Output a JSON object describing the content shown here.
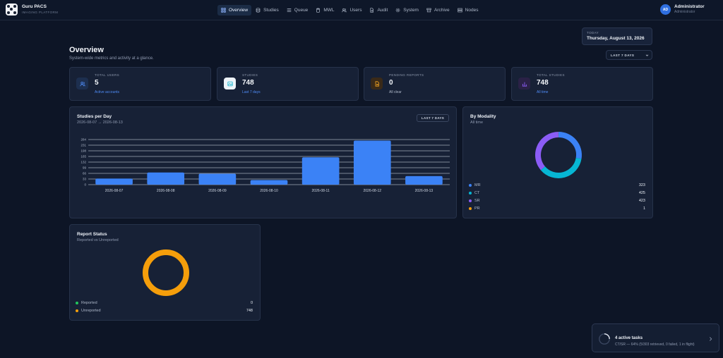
{
  "app": {
    "name": "Guru PACS",
    "subtitle": "IMAGING PLATFORM"
  },
  "nav": [
    {
      "label": "Overview",
      "icon": "grid-icon",
      "active": true
    },
    {
      "label": "Studies",
      "icon": "database-icon"
    },
    {
      "label": "Queue",
      "icon": "list-icon"
    },
    {
      "label": "MWL",
      "icon": "clipboard-icon"
    },
    {
      "label": "Users",
      "icon": "users-icon"
    },
    {
      "label": "Audit",
      "icon": "file-icon"
    },
    {
      "label": "System",
      "icon": "gear-icon"
    },
    {
      "label": "Archive",
      "icon": "archive-icon"
    },
    {
      "label": "Nodes",
      "icon": "server-icon"
    }
  ],
  "user": {
    "initials": "AD",
    "name": "Administrator",
    "role": "Administrator"
  },
  "date": {
    "label": "TODAY",
    "value": "Thursday, August 13, 2026"
  },
  "page": {
    "title": "Overview",
    "subtitle": "System-wide metrics and activity at a glance."
  },
  "range_select": {
    "value": "LAST 7 DAYS"
  },
  "stats": [
    {
      "label": "TOTAL USERS",
      "value": "5",
      "sub": "Active accounts",
      "icon": "users-icon",
      "color": "#4f8cf7",
      "sub_color": "#4f8cf7",
      "bg": "#1d2f4f"
    },
    {
      "label": "STUDIES",
      "value": "748",
      "sub": "Last 7 days",
      "icon": "image-icon",
      "color": "#22b8cf",
      "sub_color": "#4f8cf7",
      "bg": "#eef3f8"
    },
    {
      "label": "PENDING REPORTS",
      "value": "0",
      "sub": "All clear",
      "icon": "document-icon",
      "color": "#f5a623",
      "sub_color": "#aeb8c9",
      "bg": "#3a2a18"
    },
    {
      "label": "TOTAL STUDIES",
      "value": "748",
      "sub": "All time",
      "icon": "bar-chart-icon",
      "color": "#8b5cf6",
      "sub_color": "#4f8cf7",
      "bg": "#2a2146"
    }
  ],
  "studies_chart": {
    "title": "Studies per Day",
    "subtitle": "2026-08-07 → 2026-08-13",
    "range_label": "LAST 7 DAYS"
  },
  "chart_data": [
    {
      "type": "bar",
      "title": "Studies per Day",
      "subtitle": "2026-08-07 → 2026-08-13",
      "categories": [
        "2026-08-07",
        "2026-08-08",
        "2026-08-09",
        "2026-08-10",
        "2026-08-11",
        "2026-08-12",
        "2026-08-13"
      ],
      "values": [
        40,
        80,
        72,
        30,
        180,
        290,
        56
      ],
      "yticks": [
        "284",
        "231",
        "198",
        "165",
        "132",
        "99",
        "66",
        "33",
        "0"
      ],
      "ylim": [
        0,
        297
      ],
      "grid": true,
      "color": "#3b82f6"
    },
    {
      "type": "pie",
      "title": "By Modality",
      "subtitle": "All time",
      "labels": [
        "MR",
        "CT",
        "SR",
        "PR"
      ],
      "values": [
        323,
        425,
        423,
        1
      ],
      "colors": [
        "#3b82f6",
        "#06b6d4",
        "#8b5cf6",
        "#f59e0b"
      ]
    },
    {
      "type": "pie",
      "title": "Report Status",
      "subtitle": "Reported vs Unreported",
      "labels": [
        "Reported",
        "Unreported"
      ],
      "values": [
        0,
        748
      ],
      "colors": [
        "#22c55e",
        "#f59e0b"
      ]
    }
  ],
  "toast": {
    "title": "4 active tasks",
    "sub": "CT/SR — 64% (5/303 retrieved, 0 failed, 1 in flight)"
  }
}
